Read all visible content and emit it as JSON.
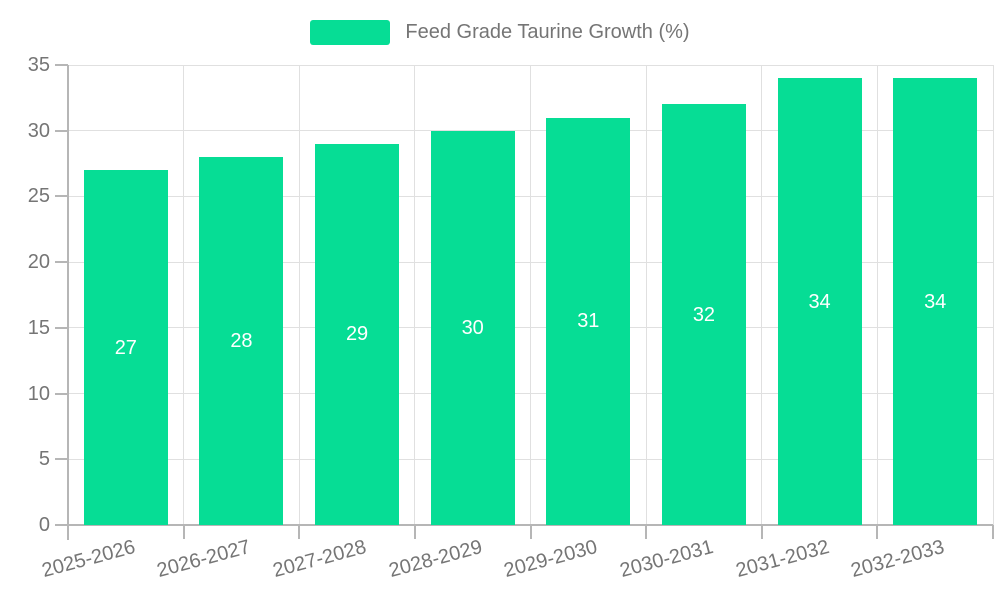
{
  "legend": {
    "items": [
      {
        "label": "Feed Grade Taurine Growth (%)",
        "color": "#06DD95"
      }
    ]
  },
  "colors": {
    "bar": "#06DD95",
    "axis_text": "#757575",
    "axis_line": "#b6b6b6",
    "gridline": "#e0e0e0",
    "bar_label": "#ffffff",
    "background": "#ffffff"
  },
  "chart_data": {
    "type": "bar",
    "title": "Feed Grade Taurine Growth (%)",
    "categories": [
      "2025-2026",
      "2026-2027",
      "2027-2028",
      "2028-2029",
      "2029-2030",
      "2030-2031",
      "2031-2032",
      "2032-2033"
    ],
    "values": [
      27,
      28,
      29,
      30,
      31,
      32,
      34,
      34
    ],
    "xlabel": "",
    "ylabel": "",
    "ylim": [
      0,
      35
    ],
    "yticks": [
      0,
      5,
      10,
      15,
      20,
      25,
      30,
      35
    ],
    "grid": true,
    "legend_position": "top",
    "x_label_rotation_deg": -15,
    "data_labels_shown": true
  }
}
